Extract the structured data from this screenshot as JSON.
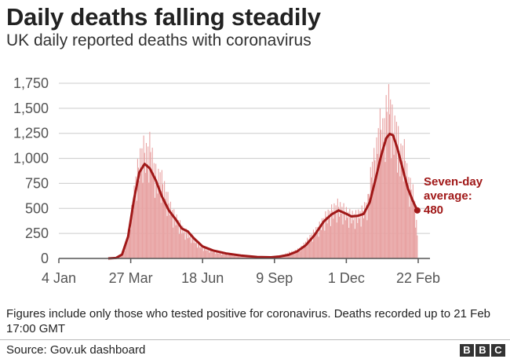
{
  "header": {
    "title": "Daily deaths falling steadily",
    "subtitle": "UK daily reported deaths with coronavirus"
  },
  "footer": {
    "note": "Figures include only those who tested positive for coronavirus. Deaths recorded up to 21 Feb 17:00 GMT",
    "source": "Source: Gov.uk dashboard",
    "logo_letters": [
      "B",
      "B",
      "C"
    ]
  },
  "colors": {
    "bars": "#e8a3a3",
    "average_line": "#a01818",
    "grid": "#cccccc",
    "axis": "#555555"
  },
  "chart_data": {
    "type": "bar",
    "title": "Daily deaths falling steadily",
    "subtitle": "UK daily reported deaths with coronavirus",
    "xlabel": "",
    "ylabel": "",
    "ylim": [
      0,
      1750
    ],
    "xlim": [
      "2020-01-04",
      "2021-02-21"
    ],
    "yticks": [
      0,
      250,
      500,
      750,
      1000,
      1250,
      1500,
      1750
    ],
    "ytick_labels": [
      "0",
      "250",
      "500",
      "750",
      "1,000",
      "1,250",
      "1,500",
      "1,750"
    ],
    "xticks": [
      {
        "date": "2020-01-04",
        "label": "4 Jan"
      },
      {
        "date": "2020-03-27",
        "label": "27 Mar"
      },
      {
        "date": "2020-06-18",
        "label": "18 Jun"
      },
      {
        "date": "2020-09-09",
        "label": "9 Sep"
      },
      {
        "date": "2020-12-01",
        "label": "1 Dec"
      },
      {
        "date": "2021-02-22",
        "label": "22 Feb"
      }
    ],
    "grid": true,
    "series": [
      {
        "type": "bar",
        "points": [
          [
            "2020-03-01",
            0
          ],
          [
            "2020-03-08",
            5
          ],
          [
            "2020-03-15",
            35
          ],
          [
            "2020-03-20",
            110
          ],
          [
            "2020-03-25",
            300
          ],
          [
            "2020-03-29",
            520
          ],
          [
            "2020-04-02",
            780
          ],
          [
            "2020-04-06",
            950
          ],
          [
            "2020-04-10",
            1080
          ],
          [
            "2020-04-14",
            1030
          ],
          [
            "2020-04-18",
            1100
          ],
          [
            "2020-04-22",
            950
          ],
          [
            "2020-04-26",
            780
          ],
          [
            "2020-04-30",
            820
          ],
          [
            "2020-05-05",
            690
          ],
          [
            "2020-05-10",
            550
          ],
          [
            "2020-05-15",
            440
          ],
          [
            "2020-05-20",
            380
          ],
          [
            "2020-05-25",
            300
          ],
          [
            "2020-05-30",
            260
          ],
          [
            "2020-06-05",
            220
          ],
          [
            "2020-06-10",
            170
          ],
          [
            "2020-06-15",
            130
          ],
          [
            "2020-06-20",
            100
          ],
          [
            "2020-06-27",
            80
          ],
          [
            "2020-07-05",
            60
          ],
          [
            "2020-07-15",
            45
          ],
          [
            "2020-07-25",
            35
          ],
          [
            "2020-08-05",
            22
          ],
          [
            "2020-08-15",
            18
          ],
          [
            "2020-08-25",
            15
          ],
          [
            "2020-09-05",
            18
          ],
          [
            "2020-09-12",
            25
          ],
          [
            "2020-09-19",
            35
          ],
          [
            "2020-09-26",
            60
          ],
          [
            "2020-10-03",
            75
          ],
          [
            "2020-10-10",
            110
          ],
          [
            "2020-10-17",
            180
          ],
          [
            "2020-10-24",
            250
          ],
          [
            "2020-10-31",
            320
          ],
          [
            "2020-11-07",
            410
          ],
          [
            "2020-11-14",
            470
          ],
          [
            "2020-11-21",
            520
          ],
          [
            "2020-11-28",
            480
          ],
          [
            "2020-12-05",
            430
          ],
          [
            "2020-12-12",
            420
          ],
          [
            "2020-12-19",
            460
          ],
          [
            "2020-12-26",
            560
          ],
          [
            "2020-12-30",
            900
          ],
          [
            "2021-01-04",
            1000
          ],
          [
            "2021-01-08",
            1320
          ],
          [
            "2021-01-12",
            1250
          ],
          [
            "2021-01-16",
            1420
          ],
          [
            "2021-01-20",
            1600
          ],
          [
            "2021-01-24",
            1250
          ],
          [
            "2021-01-28",
            1300
          ],
          [
            "2021-02-01",
            1000
          ],
          [
            "2021-02-05",
            1100
          ],
          [
            "2021-02-09",
            850
          ],
          [
            "2021-02-13",
            700
          ],
          [
            "2021-02-17",
            650
          ],
          [
            "2021-02-21",
            230
          ]
        ]
      },
      {
        "type": "line",
        "name": "Seven-day average",
        "points": [
          [
            "2020-03-01",
            0
          ],
          [
            "2020-03-10",
            5
          ],
          [
            "2020-03-17",
            40
          ],
          [
            "2020-03-24",
            220
          ],
          [
            "2020-03-31",
            600
          ],
          [
            "2020-04-06",
            860
          ],
          [
            "2020-04-12",
            945
          ],
          [
            "2020-04-18",
            900
          ],
          [
            "2020-04-25",
            780
          ],
          [
            "2020-05-02",
            620
          ],
          [
            "2020-05-10",
            480
          ],
          [
            "2020-05-18",
            390
          ],
          [
            "2020-05-25",
            300
          ],
          [
            "2020-06-01",
            270
          ],
          [
            "2020-06-08",
            200
          ],
          [
            "2020-06-18",
            120
          ],
          [
            "2020-06-30",
            80
          ],
          [
            "2020-07-15",
            50
          ],
          [
            "2020-08-01",
            30
          ],
          [
            "2020-08-20",
            15
          ],
          [
            "2020-09-05",
            12
          ],
          [
            "2020-09-15",
            20
          ],
          [
            "2020-09-25",
            35
          ],
          [
            "2020-10-05",
            70
          ],
          [
            "2020-10-15",
            130
          ],
          [
            "2020-10-25",
            230
          ],
          [
            "2020-11-05",
            370
          ],
          [
            "2020-11-14",
            440
          ],
          [
            "2020-11-22",
            480
          ],
          [
            "2020-11-30",
            450
          ],
          [
            "2020-12-07",
            420
          ],
          [
            "2020-12-14",
            425
          ],
          [
            "2020-12-21",
            445
          ],
          [
            "2020-12-28",
            560
          ],
          [
            "2021-01-04",
            800
          ],
          [
            "2021-01-10",
            1020
          ],
          [
            "2021-01-16",
            1200
          ],
          [
            "2021-01-20",
            1245
          ],
          [
            "2021-01-24",
            1230
          ],
          [
            "2021-01-29",
            1100
          ],
          [
            "2021-02-04",
            900
          ],
          [
            "2021-02-10",
            700
          ],
          [
            "2021-02-16",
            570
          ],
          [
            "2021-02-21",
            480
          ]
        ],
        "annotation": {
          "lines": [
            "Seven-day",
            "average:",
            "480"
          ],
          "value": 480
        }
      }
    ]
  }
}
